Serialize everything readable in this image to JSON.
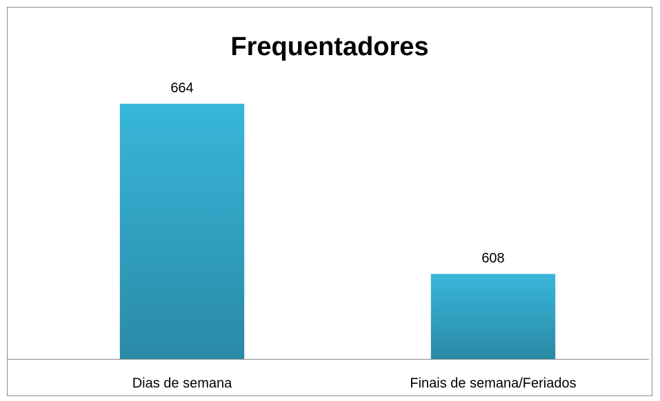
{
  "chart_data": {
    "type": "bar",
    "title": "Frequentadores",
    "categories": [
      "Dias de semana",
      "Finais de semana/Feriados"
    ],
    "values": [
      664,
      608
    ],
    "color": "#37b2d6",
    "ylim": [
      580,
      680
    ],
    "grid": false,
    "data_labels": true
  }
}
